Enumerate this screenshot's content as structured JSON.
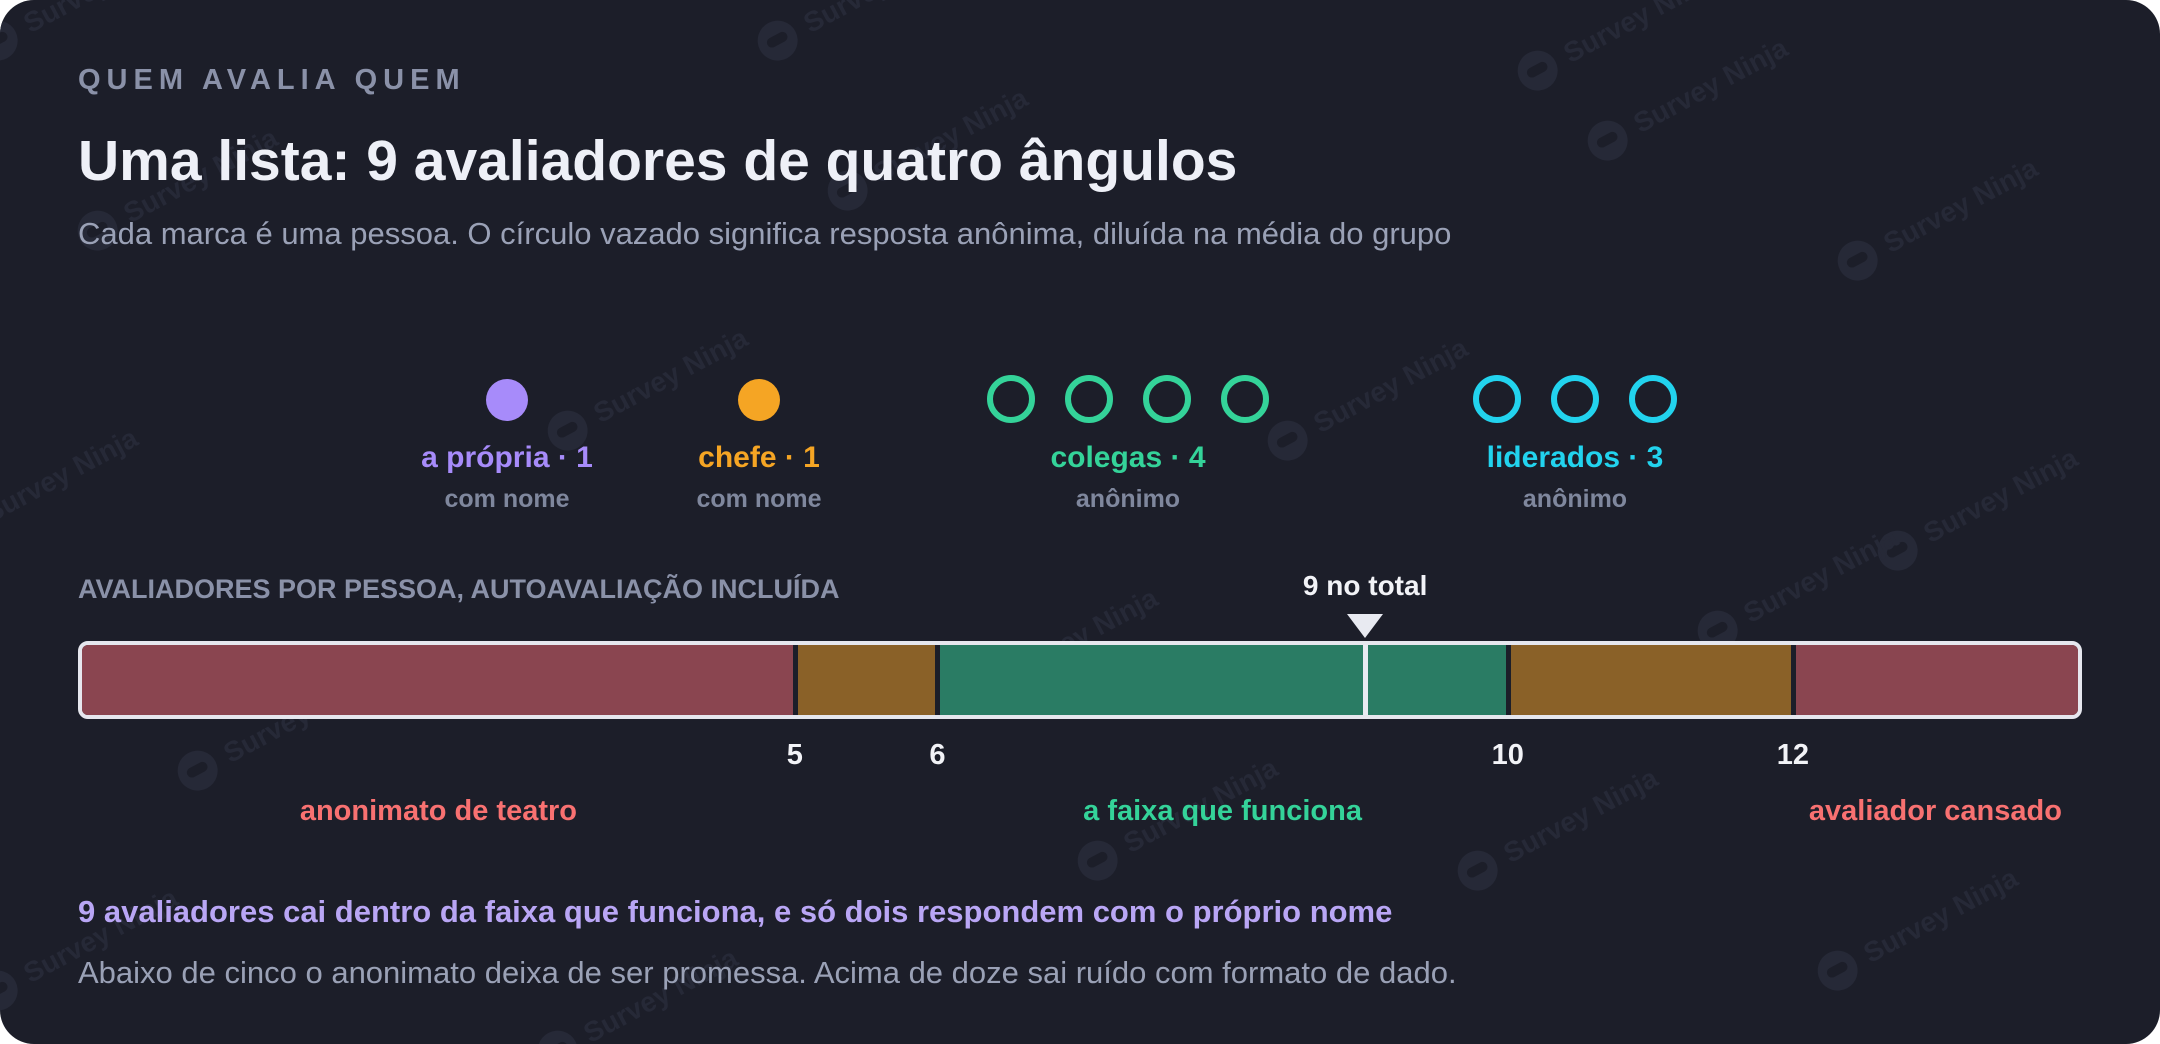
{
  "watermark_text": "Survey Ninja",
  "eyebrow": "QUEM AVALIA QUEM",
  "title": "Uma lista: 9 avaliadores de quatro ângulos",
  "subtitle": "Cada marca é uma pessoa. O círculo vazado significa resposta anônima, diluída na média do grupo",
  "groups": [
    {
      "label": "a própria · 1",
      "sub": "com nome",
      "count": 1,
      "anonymous": false,
      "color": "#a78bfa",
      "icon": "filled-circle-icon"
    },
    {
      "label": "chefe · 1",
      "sub": "com nome",
      "count": 1,
      "anonymous": false,
      "color": "#f5a524",
      "icon": "filled-circle-icon"
    },
    {
      "label": "colegas · 4",
      "sub": "anônimo",
      "count": 4,
      "anonymous": true,
      "color": "#34d399",
      "icon": "hollow-circle-icon"
    },
    {
      "label": "liderados · 3",
      "sub": "anônimo",
      "count": 3,
      "anonymous": true,
      "color": "#22d3ee",
      "icon": "hollow-circle-icon"
    }
  ],
  "scale": {
    "label": "AVALIADORES POR PESSOA, AUTOAVALIAÇÃO INCLUÍDA",
    "min": 0,
    "max": 14,
    "current_value": 9,
    "current_label": "9 no total",
    "segments": [
      {
        "from": 0,
        "to": 5,
        "color": "#8a4550"
      },
      {
        "from": 5,
        "to": 6,
        "color": "#8a6128"
      },
      {
        "from": 6,
        "to": 10,
        "color": "#2a7c64"
      },
      {
        "from": 10,
        "to": 12,
        "color": "#8a6128"
      },
      {
        "from": 12,
        "to": 14,
        "color": "#8a4550"
      }
    ],
    "ticks": [
      {
        "value": 5,
        "label": "5"
      },
      {
        "value": 6,
        "label": "6"
      },
      {
        "value": 10,
        "label": "10"
      },
      {
        "value": 12,
        "label": "12"
      }
    ],
    "zones": [
      {
        "label": "anonimato de teatro",
        "center": 2.5,
        "color": "#f87171"
      },
      {
        "label": "a faixa que funciona",
        "center": 8,
        "color": "#34d399"
      },
      {
        "label": "avaliador cansado",
        "center": 13,
        "color": "#f87171"
      }
    ]
  },
  "conclusion": "9 avaliadores cai dentro da faixa que funciona, e só dois respondem com o próprio nome",
  "note": "Abaixo de cinco o anonimato deixa de ser promessa. Acima de doze sai ruído com formato de dado."
}
